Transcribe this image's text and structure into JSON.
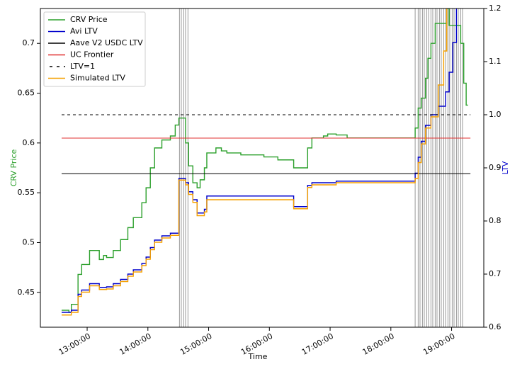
{
  "chart_data": {
    "type": "line",
    "xlabel": "Time",
    "ylabel": "CRV Price",
    "y2label": "LTV",
    "ylabel_color": "#2ca02c",
    "y2label_color": "#0000cc",
    "xlim": [
      12.23,
      19.53
    ],
    "ylim": [
      0.415,
      0.735
    ],
    "y2lim": [
      0.6,
      1.2
    ],
    "xticks": [
      {
        "value": 13,
        "label": "13:00:00"
      },
      {
        "value": 14,
        "label": "14:00:00"
      },
      {
        "value": 15,
        "label": "15:00:00"
      },
      {
        "value": 16,
        "label": "16:00:00"
      },
      {
        "value": 17,
        "label": "17:00:00"
      },
      {
        "value": 18,
        "label": "18:00:00"
      },
      {
        "value": 19,
        "label": "19:00:00"
      }
    ],
    "yticks": [
      0.45,
      0.5,
      0.55,
      0.6,
      0.65,
      0.7
    ],
    "y2ticks": [
      0.6,
      0.7,
      0.8,
      0.9,
      {
        "value": 1,
        "label": "1.0"
      },
      1.1,
      1.2
    ],
    "legend": "upper left",
    "event_lines": {
      "color": "#999999",
      "x": [
        14.52,
        14.55,
        14.59,
        14.62,
        14.66,
        18.4,
        18.45,
        18.48,
        18.52,
        18.55,
        18.59,
        18.62,
        18.66,
        18.69,
        18.73,
        18.76,
        18.8,
        18.83,
        18.87,
        18.9,
        18.94,
        18.97,
        19.01,
        19.04,
        19.08,
        19.11,
        19.15,
        19.18
      ]
    },
    "series": [
      {
        "name": "CRV Price",
        "color": "#2ca02c",
        "axis": "y",
        "step": true,
        "x": [
          12.58,
          12.7,
          12.74,
          12.85,
          12.91,
          13.04,
          13.2,
          13.27,
          13.32,
          13.43,
          13.55,
          13.67,
          13.76,
          13.9,
          13.97,
          14.04,
          14.11,
          14.23,
          14.37,
          14.45,
          14.51,
          14.62,
          14.67,
          14.74,
          14.81,
          14.86,
          14.93,
          14.97,
          15.12,
          15.21,
          15.3,
          15.53,
          15.91,
          16.14,
          16.4,
          16.63,
          16.7,
          16.89,
          16.96,
          17.1,
          17.28,
          18.4,
          18.45,
          18.5,
          18.57,
          18.61,
          18.66,
          18.73,
          18.92,
          18.96,
          19.15,
          19.2,
          19.24,
          19.27
        ],
        "values": [
          0.432,
          0.43,
          0.438,
          0.468,
          0.478,
          0.492,
          0.483,
          0.487,
          0.485,
          0.492,
          0.503,
          0.515,
          0.525,
          0.54,
          0.555,
          0.575,
          0.595,
          0.603,
          0.607,
          0.618,
          0.625,
          0.6,
          0.577,
          0.56,
          0.555,
          0.563,
          0.575,
          0.59,
          0.595,
          0.592,
          0.59,
          0.588,
          0.586,
          0.583,
          0.575,
          0.595,
          0.605,
          0.607,
          0.609,
          0.608,
          0.605,
          0.615,
          0.635,
          0.645,
          0.665,
          0.685,
          0.7,
          0.72,
          0.735,
          0.718,
          0.7,
          0.66,
          0.638,
          0.638
        ]
      },
      {
        "name": "Avi LTV",
        "color": "#0000cc",
        "axis": "y2",
        "step": true,
        "x": [
          12.58,
          12.74,
          12.85,
          12.91,
          13.04,
          13.2,
          13.32,
          13.43,
          13.55,
          13.67,
          13.76,
          13.9,
          13.97,
          14.04,
          14.11,
          14.23,
          14.37,
          14.51,
          14.62,
          14.67,
          14.74,
          14.81,
          14.93,
          14.97,
          16.4,
          16.63,
          16.7,
          17.1,
          18.4,
          18.45,
          18.5,
          18.57,
          18.66,
          18.78,
          18.9,
          18.96,
          19.02,
          19.08
        ],
        "values": [
          0.628,
          0.632,
          0.662,
          0.67,
          0.682,
          0.675,
          0.676,
          0.682,
          0.69,
          0.7,
          0.708,
          0.72,
          0.732,
          0.75,
          0.764,
          0.772,
          0.777,
          0.88,
          0.872,
          0.855,
          0.84,
          0.815,
          0.822,
          0.847,
          0.827,
          0.867,
          0.872,
          0.875,
          0.89,
          0.92,
          0.95,
          0.98,
          1.0,
          1.016,
          1.043,
          1.08,
          1.136,
          1.2
        ]
      },
      {
        "name": "Aave V2 USDC LTV",
        "color": "#000000",
        "axis": "y2",
        "step": false,
        "x": [
          12.58,
          19.31
        ],
        "values": [
          0.889,
          0.889
        ]
      },
      {
        "name": "UC Frontier",
        "color": "#e03030",
        "axis": "y2",
        "step": false,
        "x": [
          12.58,
          19.31
        ],
        "values": [
          0.956,
          0.956
        ]
      },
      {
        "name": "LTV=1",
        "color": "#000000",
        "axis": "y2",
        "step": false,
        "dash": true,
        "x": [
          12.58,
          19.31
        ],
        "values": [
          1,
          1
        ]
      },
      {
        "name": "Simulated LTV",
        "color": "#f5a000",
        "axis": "y2",
        "step": true,
        "x": [
          12.58,
          12.74,
          12.85,
          12.91,
          13.04,
          13.2,
          13.32,
          13.43,
          13.55,
          13.67,
          13.76,
          13.9,
          13.97,
          14.04,
          14.11,
          14.23,
          14.37,
          14.51,
          14.62,
          14.67,
          14.74,
          14.81,
          14.93,
          14.97,
          16.4,
          16.63,
          16.7,
          17.1,
          18.4,
          18.45,
          18.5,
          18.57,
          18.66,
          18.78,
          18.87,
          18.92
        ],
        "values": [
          0.623,
          0.628,
          0.658,
          0.666,
          0.678,
          0.671,
          0.672,
          0.678,
          0.686,
          0.696,
          0.704,
          0.716,
          0.728,
          0.746,
          0.76,
          0.768,
          0.773,
          0.877,
          0.868,
          0.85,
          0.835,
          0.81,
          0.817,
          0.84,
          0.823,
          0.863,
          0.868,
          0.872,
          0.88,
          0.91,
          0.945,
          0.975,
          0.996,
          1.056,
          1.12,
          1.2
        ]
      }
    ]
  }
}
